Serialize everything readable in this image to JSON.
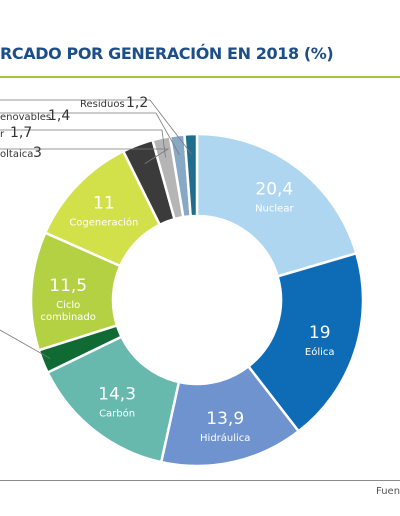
{
  "header": {
    "title": "RCADO POR GENERACIÓN EN 2018 (%)"
  },
  "footer": {
    "source": "Fuen"
  },
  "colors": {
    "title": "#1c4f8a",
    "rule": "#a7c539"
  },
  "chart_data": {
    "type": "pie",
    "title": "RCADO POR GENERACIÓN EN 2018 (%)",
    "donut": true,
    "slices": [
      {
        "label": "Nuclear",
        "value": 20.4,
        "value_text": "20,4",
        "color": "#aed6f1",
        "text_color": "#ffffff"
      },
      {
        "label": "Eólica",
        "value": 19,
        "value_text": "19",
        "color": "#0e6bb5",
        "text_color": "#ffffff"
      },
      {
        "label": "Hidráulica",
        "value": 13.9,
        "value_text": "13,9",
        "color": "#6f93cf",
        "text_color": "#ffffff"
      },
      {
        "label": "Carbón",
        "value": 14.3,
        "value_text": "14,3",
        "color": "#67b8ad",
        "text_color": "#ffffff"
      },
      {
        "label": "",
        "value": 2.3,
        "value_text": "",
        "color": "#0f6b33",
        "text_color": "#ffffff"
      },
      {
        "label": "Ciclo combinado",
        "value": 11.5,
        "value_text": "11,5",
        "color": "#b4d143",
        "text_color": "#ffffff"
      },
      {
        "label": "Cogeneración",
        "value": 11,
        "value_text": "11",
        "color": "#d2e04a",
        "text_color": "#ffffff"
      },
      {
        "label": "oltaica",
        "value": 3,
        "value_text": "3",
        "color": "#3b3b3b",
        "text_color": "#333333"
      },
      {
        "label": "r",
        "value": 1.7,
        "value_text": "1,7",
        "color": "#b5b5b5",
        "text_color": "#333333"
      },
      {
        "label": "enovables",
        "value": 1.4,
        "value_text": "1,4",
        "color": "#87a9c6",
        "text_color": "#333333"
      },
      {
        "label": "Residuos",
        "value": 1.2,
        "value_text": "1,2",
        "color": "#1f6e8e",
        "text_color": "#333333"
      }
    ]
  }
}
